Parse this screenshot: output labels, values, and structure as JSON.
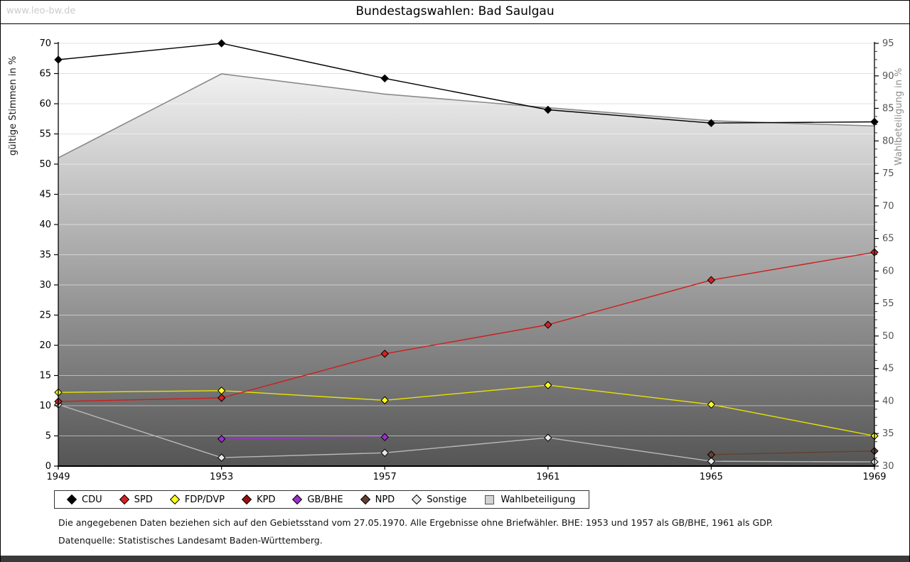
{
  "page": {
    "watermark": "www.leo-bw.de",
    "title": "Bundestagswahlen: Bad Saulgau"
  },
  "chart_data": {
    "type": "line",
    "title": "Bundestagswahlen: Bad Saulgau",
    "x": [
      1949,
      1953,
      1957,
      1961,
      1965,
      1969
    ],
    "ylabel_left": "gültige Stimmen in %",
    "ylabel_right": "Wahlbeteiligung in %",
    "ylim_left": [
      0,
      70
    ],
    "ylim_right": [
      30,
      95
    ],
    "ytick_step": 5,
    "grid": true,
    "legend_position": "bottom",
    "series": [
      {
        "name": "CDU",
        "axis": "left",
        "marker": "diamond",
        "color": "#000000",
        "marker_fill": "#000000",
        "values": [
          67.3,
          70.0,
          64.2,
          59.0,
          56.8,
          57.0
        ]
      },
      {
        "name": "SPD",
        "axis": "left",
        "marker": "diamond",
        "color": "#cf1d1d",
        "marker_fill": "#d42222",
        "values": [
          10.7,
          11.3,
          18.6,
          23.4,
          30.8,
          35.4
        ]
      },
      {
        "name": "FDP/DVP",
        "axis": "left",
        "marker": "diamond",
        "color": "#e8e400",
        "marker_fill": "#ffff1a",
        "values": [
          12.2,
          12.5,
          10.9,
          13.4,
          10.2,
          5.0
        ]
      },
      {
        "name": "KPD",
        "axis": "left",
        "marker": "diamond",
        "color": "#990f0f",
        "marker_fill": "#990f0f",
        "values": [
          null,
          null,
          null,
          null,
          null,
          null
        ]
      },
      {
        "name": "GB/BHE",
        "axis": "left",
        "marker": "diamond",
        "color": "#9b30cc",
        "marker_fill": "#9b30cc",
        "values": [
          null,
          4.5,
          4.8,
          null,
          null,
          null
        ]
      },
      {
        "name": "NPD",
        "axis": "left",
        "marker": "diamond",
        "color": "#64402d",
        "marker_fill": "#64402d",
        "values": [
          null,
          null,
          null,
          null,
          1.9,
          2.5
        ]
      },
      {
        "name": "Sonstige",
        "axis": "left",
        "marker": "diamond",
        "color": "#b8b8b8",
        "marker_fill": "#e8e8e8",
        "values": [
          10.2,
          1.4,
          2.2,
          4.7,
          0.8,
          0.7
        ]
      },
      {
        "name": "Wahlbeteiligung",
        "axis": "right",
        "marker": "none",
        "color": "#8a8a8a",
        "area": true,
        "area_gradient": [
          "#fdfdfd",
          "#555555"
        ],
        "values": [
          77.4,
          90.3,
          87.2,
          85.1,
          83.1,
          82.3
        ]
      }
    ]
  },
  "footnotes": [
    "Die angegebenen Daten beziehen sich auf den Gebietsstand vom 27.05.1970. Alle Ergebnisse ohne Briefwähler. BHE: 1953 und 1957 als GB/BHE, 1961 als GDP.",
    "Datenquelle: Statistisches Landesamt Baden-Württemberg."
  ]
}
